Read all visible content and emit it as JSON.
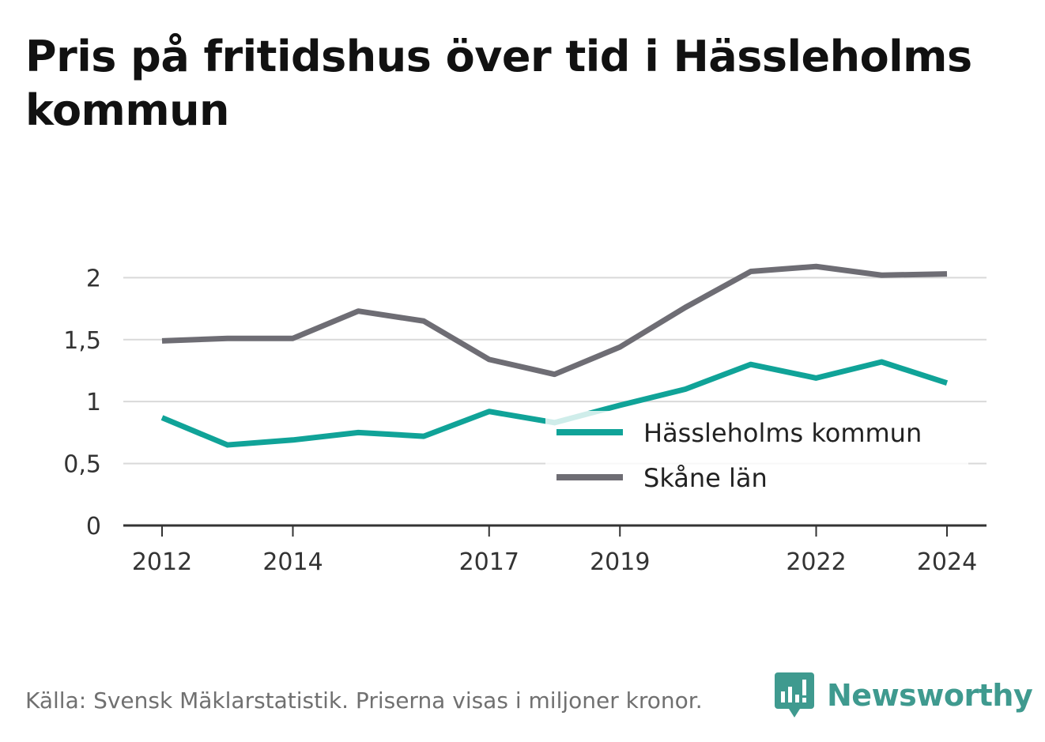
{
  "title": "Pris på fritidshus över tid i Hässleholms kommun",
  "source_note": "Källa: Svensk Mäklarstatistik. Priserna visas i miljoner kronor.",
  "brand": {
    "name": "Newsworthy",
    "icon": "newsworthy-logo-icon",
    "color": "#3f9a8f"
  },
  "chart_data": {
    "type": "line",
    "x": [
      2012,
      2013,
      2014,
      2015,
      2016,
      2017,
      2018,
      2019,
      2020,
      2021,
      2022,
      2023,
      2024
    ],
    "x_tick_labels": [
      "2012",
      "2014",
      "2017",
      "2019",
      "2022",
      "2024"
    ],
    "x_tick_values": [
      2012,
      2014,
      2017,
      2019,
      2022,
      2024
    ],
    "y_tick_labels": [
      "0",
      "0,5",
      "1",
      "1,5",
      "2"
    ],
    "y_tick_values": [
      0,
      0.5,
      1,
      1.5,
      2
    ],
    "ylim": [
      0,
      2.2
    ],
    "grid": true,
    "legend_position": "bottom-right",
    "series": [
      {
        "name": "Hässleholms kommun",
        "color": "#10a398",
        "values": [
          0.87,
          0.65,
          0.69,
          0.75,
          0.72,
          0.92,
          0.83,
          0.97,
          1.1,
          1.3,
          1.19,
          1.32,
          1.15
        ]
      },
      {
        "name": "Skåne län",
        "color": "#6e6d74",
        "values": [
          1.49,
          1.51,
          1.51,
          1.73,
          1.65,
          1.34,
          1.22,
          1.44,
          1.76,
          2.05,
          2.09,
          2.02,
          2.03
        ]
      }
    ]
  }
}
